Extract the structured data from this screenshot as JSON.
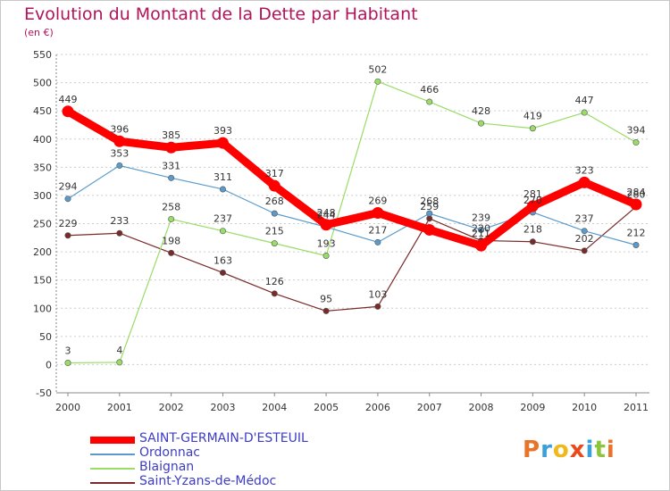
{
  "title": "Evolution du Montant de la Dette par Habitant",
  "subtitle": "(en €)",
  "logo": {
    "text": "Proxiti",
    "letters": [
      {
        "ch": "P",
        "color": "#e8742a"
      },
      {
        "ch": "r",
        "color": "#3aa0d8"
      },
      {
        "ch": "o",
        "color": "#f0b81a"
      },
      {
        "ch": "x",
        "color": "#e84a1a"
      },
      {
        "ch": "i",
        "color": "#3aa0d8"
      },
      {
        "ch": "t",
        "color": "#8cc43c"
      },
      {
        "ch": "i",
        "color": "#e8742a"
      }
    ]
  },
  "chart_data": {
    "type": "line",
    "title": "Evolution du Montant de la Dette par Habitant",
    "subtitle": "(en €)",
    "xlabel": "",
    "ylabel": "",
    "x": [
      "2000",
      "2001",
      "2002",
      "2003",
      "2004",
      "2005",
      "2006",
      "2007",
      "2008",
      "2009",
      "2010",
      "2011"
    ],
    "ylim": [
      -50,
      550
    ],
    "yticks": [
      -50,
      0,
      50,
      100,
      150,
      200,
      250,
      300,
      350,
      400,
      450,
      500,
      550
    ],
    "grid": "horizontal dotted",
    "legend": "bottom-left",
    "series": [
      {
        "name": "SAINT-GERMAIN-D'ESTEUIL",
        "color": "#ff0000",
        "style": "thick",
        "values": [
          449,
          396,
          385,
          393,
          317,
          248,
          269,
          239,
          211,
          281,
          323,
          284
        ],
        "labels": [
          "449",
          "396",
          "385",
          "393",
          "317",
          "248",
          "269",
          "",
          "211",
          "281",
          "323",
          "284"
        ]
      },
      {
        "name": "Ordonnac",
        "color": "#5a9bcc",
        "style": "thin",
        "values": [
          294,
          353,
          331,
          311,
          268,
          244,
          217,
          268,
          239,
          270,
          237,
          212
        ],
        "labels": [
          "294",
          "353",
          "331",
          "311",
          "268",
          "244",
          "217",
          "268",
          "239",
          "270",
          "237",
          "212"
        ]
      },
      {
        "name": "Blaignan",
        "color": "#99dd66",
        "style": "thin",
        "values": [
          3,
          4,
          258,
          237,
          215,
          193,
          502,
          466,
          428,
          419,
          447,
          394
        ],
        "labels": [
          "3",
          "4",
          "258",
          "237",
          "215",
          "193",
          "502",
          "466",
          "428",
          "419",
          "447",
          "394"
        ]
      },
      {
        "name": "Saint-Yzans-de-Médoc",
        "color": "#7a2a2a",
        "style": "thin",
        "values": [
          229,
          233,
          198,
          163,
          126,
          95,
          103,
          259,
          220,
          218,
          202,
          280
        ],
        "labels": [
          "229",
          "233",
          "198",
          "163",
          "126",
          "95",
          "103",
          "259",
          "220",
          "218",
          "202",
          "280"
        ]
      }
    ]
  }
}
